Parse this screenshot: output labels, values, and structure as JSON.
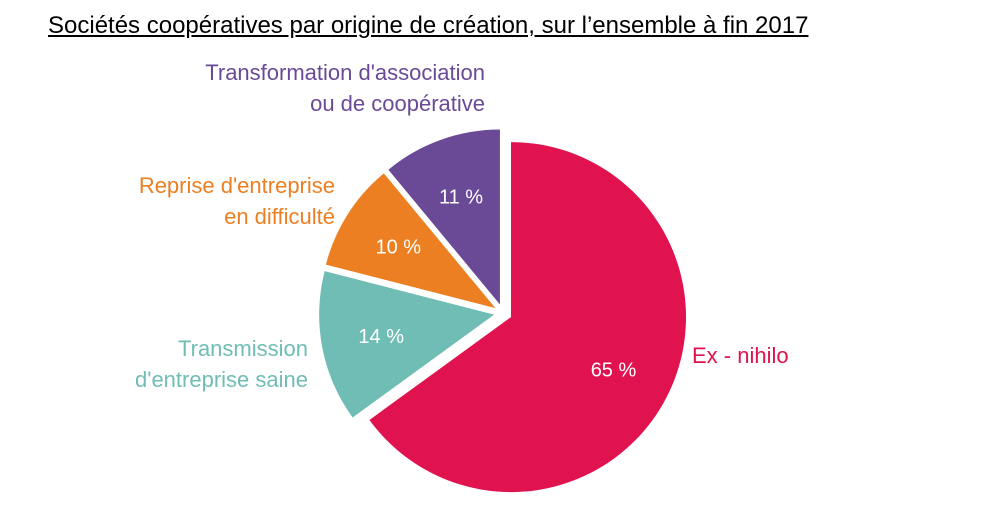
{
  "chart_data": {
    "type": "pie",
    "title": "Sociétés coopératives par origine de création, sur l’ensemble à fin 2017",
    "slices": [
      {
        "label": "Ex - nihilo",
        "label_lines": [
          "Ex - nihilo"
        ],
        "value": 65,
        "value_label": "65 %",
        "color": "#e0134f"
      },
      {
        "label": "Transmission d'entreprise saine",
        "label_lines": [
          "Transmission",
          "d'entreprise saine"
        ],
        "value": 14,
        "value_label": "14 %",
        "color": "#70bdb6"
      },
      {
        "label": "Reprise d'entreprise en difficulté",
        "label_lines": [
          "Reprise d'entreprise",
          "en difficulté"
        ],
        "value": 10,
        "value_label": "10 %",
        "color": "#ec7f22"
      },
      {
        "label": "Transformation d'association ou de coopérative",
        "label_lines": [
          "Transformation d'association",
          "ou de coopérative"
        ],
        "value": 11,
        "value_label": "11 %",
        "color": "#6a4a96"
      }
    ],
    "start_angle_deg": 0,
    "direction": "clockwise",
    "exploded": true,
    "legend": "labels beside slices"
  }
}
